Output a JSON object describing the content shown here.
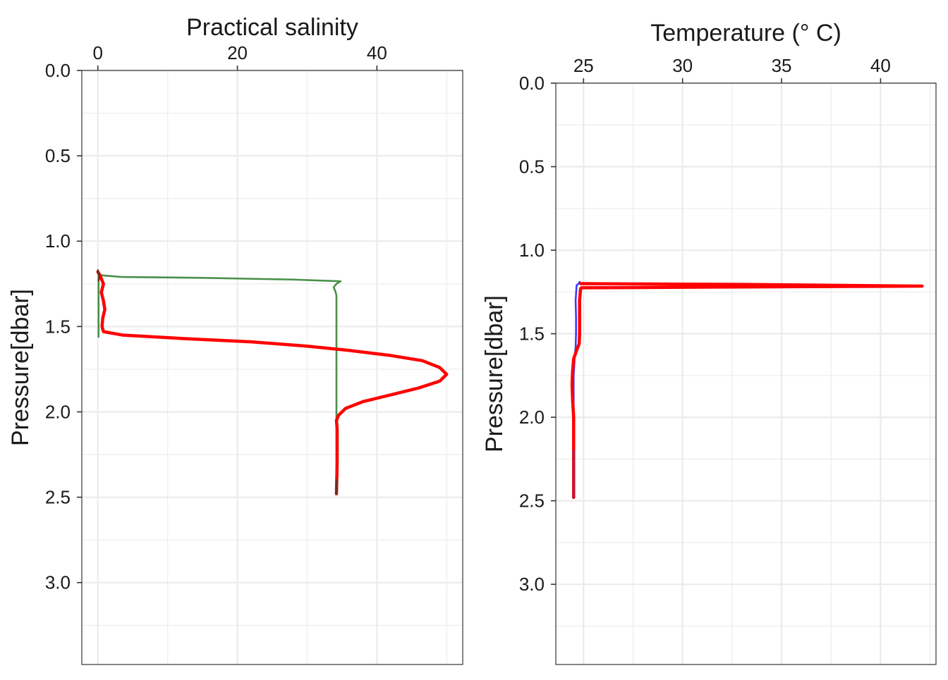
{
  "chart_data": [
    {
      "type": "line",
      "xlabel": "Practical salinity",
      "ylabel": "Pressure[dbar]",
      "x_axis_position": "top",
      "y_reversed": true,
      "xlim": [
        -2.3,
        52.3
      ],
      "ylim": [
        0,
        3.48
      ],
      "x_ticks": [
        0,
        20,
        40
      ],
      "x_tick_labels": [
        "0",
        "20",
        "40"
      ],
      "y_ticks": [
        0,
        0.5,
        1,
        1.5,
        2,
        2.5,
        3
      ],
      "y_tick_labels": [
        "0.0",
        "0.5",
        "1.0",
        "1.5",
        "2.0",
        "2.5",
        "3.0"
      ],
      "grid": true,
      "series": [
        {
          "color": "#4a8f4a",
          "points": [
            [
              0.1,
              1.18
            ],
            [
              0.2,
              1.19
            ],
            [
              0.5,
              1.2
            ],
            [
              2.0,
              1.205
            ],
            [
              3.5,
              1.21
            ],
            [
              15,
              1.215
            ],
            [
              28,
              1.225
            ],
            [
              34.8,
              1.235
            ],
            [
              34.2,
              1.25
            ],
            [
              33.8,
              1.27
            ],
            [
              34.1,
              1.3
            ],
            [
              34.2,
              1.32
            ],
            [
              34.2,
              1.4
            ],
            [
              34.2,
              1.6
            ],
            [
              34.2,
              1.8
            ],
            [
              34.2,
              2.0
            ],
            [
              34.2,
              2.2
            ],
            [
              34.2,
              2.48
            ]
          ]
        },
        {
          "color": "#4a8f4a",
          "points": [
            [
              0.1,
              1.2
            ],
            [
              0.1,
              1.3
            ],
            [
              0.1,
              1.4
            ],
            [
              0.1,
              1.5
            ],
            [
              0.1,
              1.56
            ]
          ]
        },
        {
          "color": "#ff0000",
          "points": [
            [
              0.0,
              1.18
            ],
            [
              0.3,
              1.2
            ],
            [
              0.8,
              1.25
            ],
            [
              0.5,
              1.3
            ],
            [
              0.8,
              1.35
            ],
            [
              1.0,
              1.4
            ],
            [
              0.7,
              1.45
            ],
            [
              0.6,
              1.5
            ],
            [
              0.8,
              1.53
            ],
            [
              3.5,
              1.55
            ],
            [
              12,
              1.57
            ],
            [
              22,
              1.59
            ],
            [
              30,
              1.615
            ],
            [
              36,
              1.64
            ],
            [
              42,
              1.67
            ],
            [
              46.5,
              1.7
            ],
            [
              49,
              1.74
            ],
            [
              50,
              1.78
            ],
            [
              49,
              1.82
            ],
            [
              46,
              1.86
            ],
            [
              42,
              1.9
            ],
            [
              38,
              1.94
            ],
            [
              35.5,
              1.98
            ],
            [
              34.5,
              2.02
            ],
            [
              34.2,
              2.05
            ],
            [
              34.3,
              2.1
            ],
            [
              34.3,
              2.3
            ],
            [
              34.2,
              2.48
            ]
          ]
        },
        {
          "color": "#6b2f1f",
          "points": [
            [
              0.0,
              1.17
            ],
            [
              0.1,
              1.19
            ],
            [
              0.2,
              1.21
            ],
            [
              0.1,
              1.23
            ]
          ]
        },
        {
          "color": "#6b2f1f",
          "points": [
            [
              34.2,
              2.4
            ],
            [
              34.2,
              2.48
            ]
          ]
        }
      ]
    },
    {
      "type": "line",
      "xlabel": "Temperature (° C)",
      "ylabel": "Pressure[dbar]",
      "x_axis_position": "top",
      "y_reversed": true,
      "xlim": [
        23.6,
        42.8
      ],
      "ylim": [
        0,
        3.48
      ],
      "x_ticks": [
        25,
        30,
        35,
        40
      ],
      "x_tick_labels": [
        "25",
        "30",
        "35",
        "40"
      ],
      "y_ticks": [
        0,
        0.5,
        1,
        1.5,
        2,
        2.5,
        3
      ],
      "y_tick_labels": [
        "0.0",
        "0.5",
        "1.0",
        "1.5",
        "2.0",
        "2.5",
        "3.0"
      ],
      "grid": true,
      "series": [
        {
          "color": "#3b3bff",
          "points": [
            [
              24.8,
              1.19
            ],
            [
              24.75,
              1.2
            ],
            [
              24.65,
              1.21
            ],
            [
              24.6,
              1.3
            ],
            [
              24.62,
              1.4
            ],
            [
              24.62,
              1.5
            ],
            [
              24.6,
              1.58
            ],
            [
              24.55,
              1.65
            ],
            [
              24.5,
              1.75
            ],
            [
              24.5,
              2.0
            ],
            [
              24.5,
              2.2
            ],
            [
              24.5,
              2.48
            ]
          ]
        },
        {
          "color": "#ff0000",
          "points": [
            [
              24.85,
              1.2
            ],
            [
              33,
              1.205
            ],
            [
              42.1,
              1.215
            ],
            [
              33,
              1.22
            ],
            [
              24.9,
              1.225
            ],
            [
              24.85,
              1.23
            ],
            [
              24.8,
              1.3
            ],
            [
              24.8,
              1.4
            ],
            [
              24.8,
              1.5
            ],
            [
              24.78,
              1.56
            ],
            [
              24.65,
              1.6
            ],
            [
              24.5,
              1.65
            ],
            [
              24.45,
              1.72
            ],
            [
              24.42,
              1.8
            ],
            [
              24.45,
              1.9
            ],
            [
              24.5,
              2.0
            ],
            [
              24.5,
              2.2
            ],
            [
              24.5,
              2.48
            ]
          ]
        },
        {
          "color": "#8a2a6a",
          "points": [
            [
              24.5,
              2.2
            ],
            [
              24.5,
              2.48
            ]
          ]
        }
      ]
    }
  ]
}
